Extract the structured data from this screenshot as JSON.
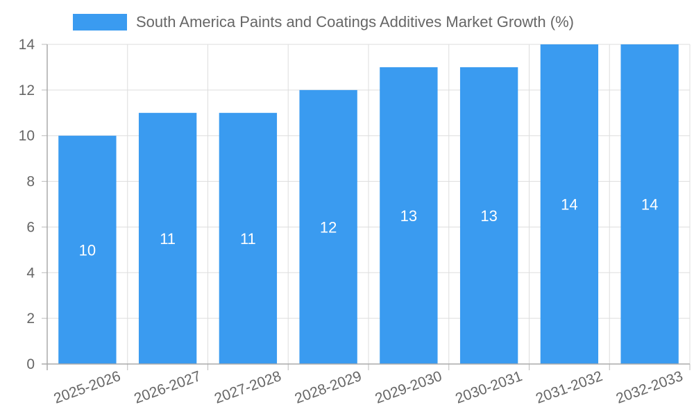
{
  "chart_data": {
    "type": "bar",
    "title": "",
    "xlabel": "",
    "ylabel": "",
    "categories": [
      "2025-2026",
      "2026-2027",
      "2027-2028",
      "2028-2029",
      "2029-2030",
      "2030-2031",
      "2031-2032",
      "2032-2033"
    ],
    "series": [
      {
        "name": "South America Paints and Coatings Additives Market Growth (%)",
        "values": [
          10,
          11,
          11,
          12,
          13,
          13,
          14,
          14
        ],
        "color": "#3a9bf0"
      }
    ],
    "ylim": [
      0,
      14
    ],
    "yticks": [
      0,
      2,
      4,
      6,
      8,
      10,
      12,
      14
    ],
    "grid": true,
    "legend_position": "top-center",
    "data_labels": true
  }
}
